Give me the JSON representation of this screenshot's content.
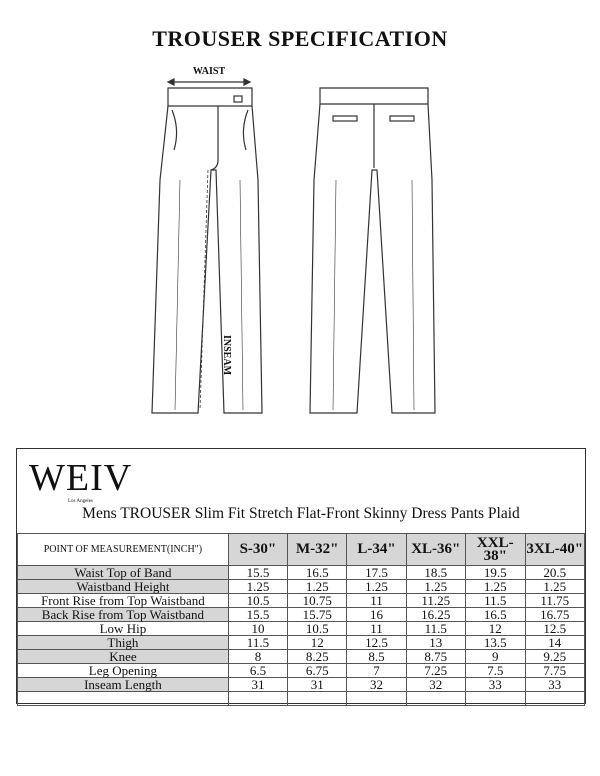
{
  "title": "TROUSER SPECIFICATION",
  "drawing": {
    "waist_label": "WAIST",
    "inseam_label": "INSEAM"
  },
  "brand": {
    "name": "WEIV",
    "sub": "Los Angeles"
  },
  "product_name": "Mens TROUSER Slim Fit Stretch Flat-Front Skinny Dress Pants Plaid",
  "table": {
    "header_label": "POINT OF MEASUREMENT(INCH\")",
    "sizes": [
      "S-30\"",
      "M-32\"",
      "L-34\"",
      "XL-36\"",
      "XXL-38\"",
      "3XL-40\""
    ],
    "rows": [
      {
        "label": "Waist Top of Band",
        "shaded": true,
        "values": [
          "15.5",
          "16.5",
          "17.5",
          "18.5",
          "19.5",
          "20.5"
        ]
      },
      {
        "label": "Waistband Height",
        "shaded": true,
        "values": [
          "1.25",
          "1.25",
          "1.25",
          "1.25",
          "1.25",
          "1.25"
        ]
      },
      {
        "label": "Front Rise from Top Waistband",
        "shaded": false,
        "values": [
          "10.5",
          "10.75",
          "11",
          "11.25",
          "11.5",
          "11.75"
        ]
      },
      {
        "label": "Back Rise from Top Waistband",
        "shaded": true,
        "values": [
          "15.5",
          "15.75",
          "16",
          "16.25",
          "16.5",
          "16.75"
        ]
      },
      {
        "label": "Low Hip",
        "shaded": false,
        "values": [
          "10",
          "10.5",
          "11",
          "11.5",
          "12",
          "12.5"
        ]
      },
      {
        "label": "Thigh",
        "shaded": true,
        "values": [
          "11.5",
          "12",
          "12.5",
          "13",
          "13.5",
          "14"
        ]
      },
      {
        "label": "Knee",
        "shaded": true,
        "values": [
          "8",
          "8.25",
          "8.5",
          "8.75",
          "9",
          "9.25"
        ]
      },
      {
        "label": "Leg Opening",
        "shaded": false,
        "values": [
          "6.5",
          "6.75",
          "7",
          "7.25",
          "7.5",
          "7.75"
        ]
      },
      {
        "label": "Inseam Length",
        "shaded": true,
        "values": [
          "31",
          "31",
          "32",
          "32",
          "33",
          "33"
        ]
      }
    ]
  }
}
